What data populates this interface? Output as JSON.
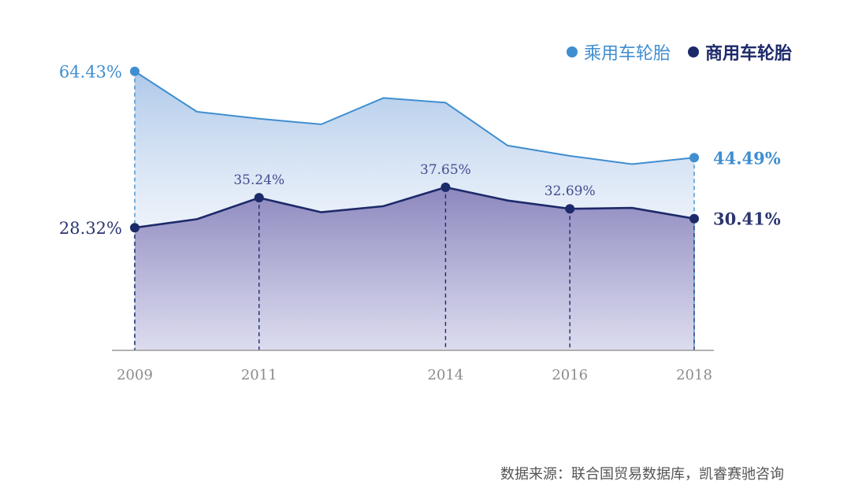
{
  "chart_data": {
    "type": "area",
    "x": [
      2009,
      2010,
      2011,
      2012,
      2013,
      2014,
      2015,
      2016,
      2017,
      2018
    ],
    "xticks": [
      "2009",
      "2011",
      "2014",
      "2016",
      "2018"
    ],
    "ylim": [
      0,
      70
    ],
    "series": [
      {
        "name": "乘用车轮胎",
        "color": "#3f8ed0",
        "values": [
          64.43,
          55.1,
          53.5,
          52.2,
          58.3,
          57.2,
          47.3,
          44.9,
          43.0,
          44.49
        ]
      },
      {
        "name": "商用车轮胎",
        "color": "#1d2a6a",
        "values": [
          28.32,
          30.3,
          35.24,
          31.9,
          33.3,
          37.65,
          34.6,
          32.69,
          32.9,
          30.41
        ]
      }
    ],
    "annotations": [
      {
        "series": 0,
        "x": 2009,
        "label": "64.43%",
        "side": "left"
      },
      {
        "series": 0,
        "x": 2018,
        "label": "44.49%",
        "side": "right"
      },
      {
        "series": 1,
        "x": 2009,
        "label": "28.32%",
        "side": "left"
      },
      {
        "series": 1,
        "x": 2011,
        "label": "35.24%",
        "side": "above"
      },
      {
        "series": 1,
        "x": 2014,
        "label": "37.65%",
        "side": "above"
      },
      {
        "series": 1,
        "x": 2016,
        "label": "32.69%",
        "side": "above"
      },
      {
        "series": 1,
        "x": 2018,
        "label": "30.41%",
        "side": "right"
      }
    ],
    "grid": false,
    "legend_position": "top-right"
  },
  "source": "数据来源：联合国贸易数据库，凯睿赛驰咨询"
}
